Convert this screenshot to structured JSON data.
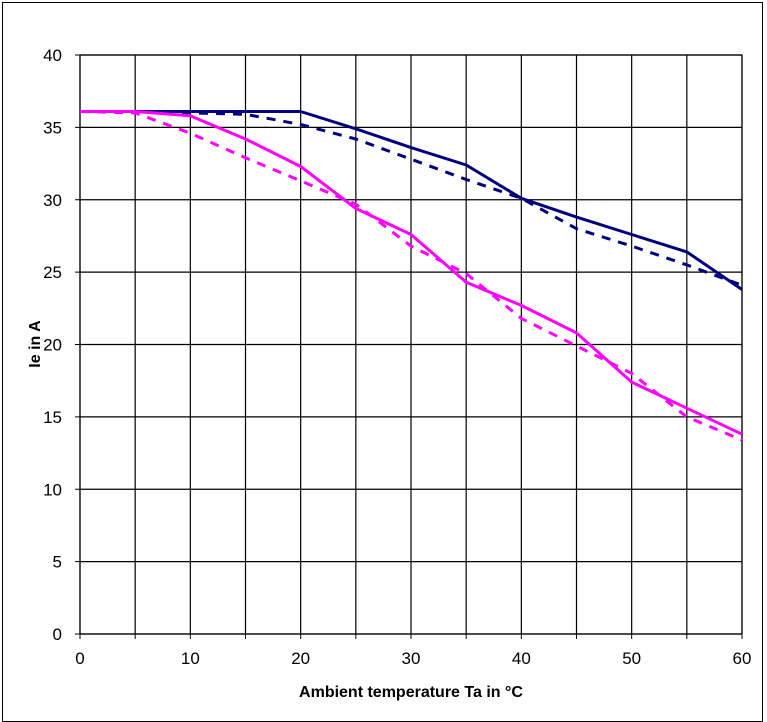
{
  "chart_data": {
    "type": "line",
    "title": "",
    "xlabel": "Ambient temperature Ta in °C",
    "ylabel": "Ie in A",
    "xlim": [
      0,
      60
    ],
    "ylim": [
      0,
      40
    ],
    "x_ticks": [
      0,
      10,
      20,
      30,
      40,
      50,
      60
    ],
    "y_ticks": [
      0,
      5,
      10,
      15,
      20,
      25,
      30,
      35,
      40
    ],
    "grid": true,
    "legend": "none",
    "series": [
      {
        "color": "#000080",
        "style": "solid",
        "x": [
          0,
          5,
          10,
          15,
          20,
          25,
          30,
          35,
          40,
          45,
          50,
          55,
          60
        ],
        "values": [
          36.1,
          36.1,
          36.1,
          36.1,
          36.1,
          34.9,
          33.6,
          32.4,
          30.1,
          28.8,
          27.6,
          26.4,
          23.8
        ]
      },
      {
        "color": "#000080",
        "style": "dashed",
        "x": [
          0,
          5,
          10,
          15,
          20,
          25,
          30,
          35,
          40,
          45,
          50,
          55,
          60
        ],
        "values": [
          36.1,
          36.1,
          36.0,
          35.9,
          35.2,
          34.2,
          32.8,
          31.4,
          30.1,
          28.0,
          26.8,
          25.5,
          24.1
        ]
      },
      {
        "color": "#ff00ff",
        "style": "solid",
        "x": [
          0,
          5,
          10,
          15,
          20,
          25,
          30,
          35,
          40,
          45,
          50,
          55,
          60
        ],
        "values": [
          36.1,
          36.1,
          35.8,
          34.2,
          32.3,
          29.4,
          27.6,
          24.3,
          22.7,
          20.8,
          17.4,
          15.6,
          13.8
        ]
      },
      {
        "color": "#ff00ff",
        "style": "dashed",
        "x": [
          0,
          5,
          10,
          15,
          20,
          25,
          30,
          35,
          40,
          45,
          50,
          55,
          60
        ],
        "values": [
          36.1,
          36.0,
          34.6,
          32.9,
          31.3,
          29.7,
          26.8,
          24.9,
          21.8,
          19.9,
          18.0,
          15.0,
          13.4
        ]
      }
    ]
  }
}
